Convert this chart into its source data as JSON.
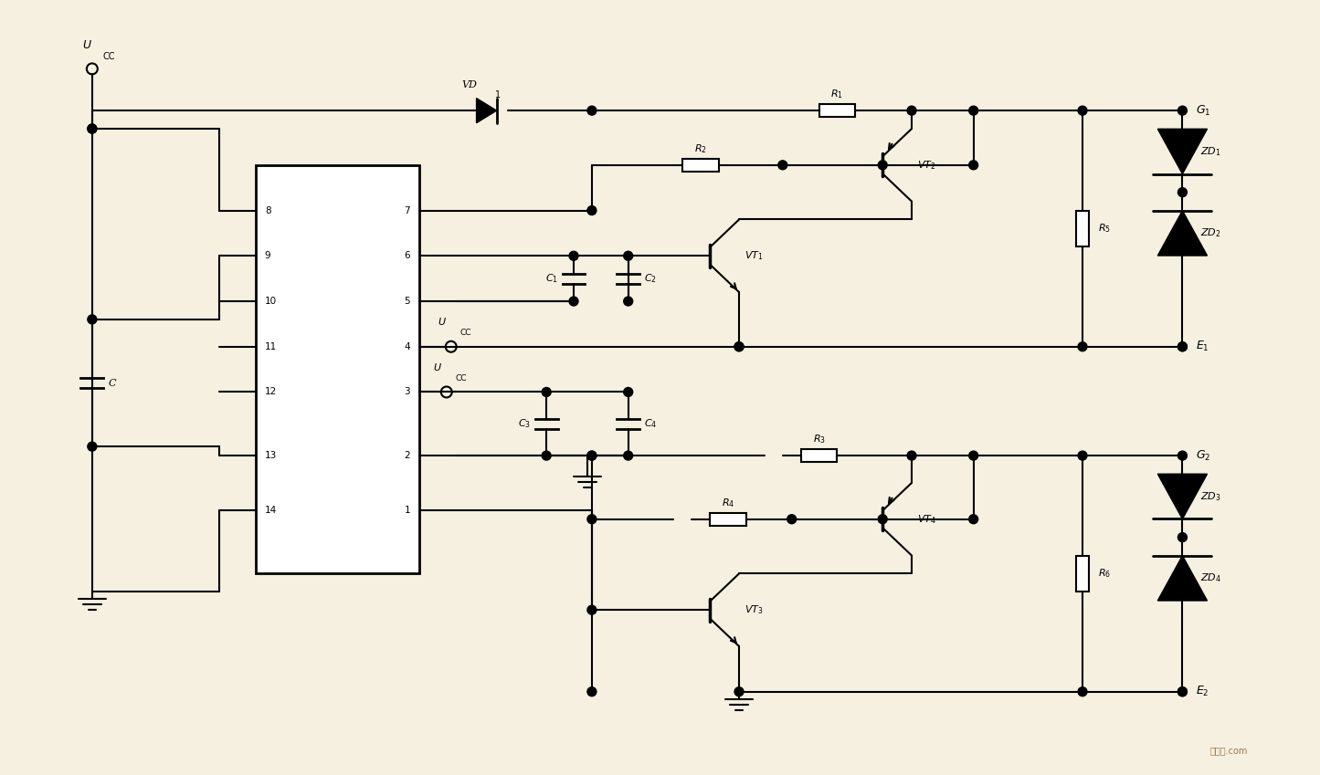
{
  "bg_color": "#f5f0e0",
  "lc": "#000000",
  "lw": 1.5,
  "xlim": [
    0,
    145
  ],
  "ylim": [
    0,
    85
  ],
  "figsize": [
    14.45,
    8.49
  ],
  "dpi": 100,
  "watermark": "接线图.com"
}
